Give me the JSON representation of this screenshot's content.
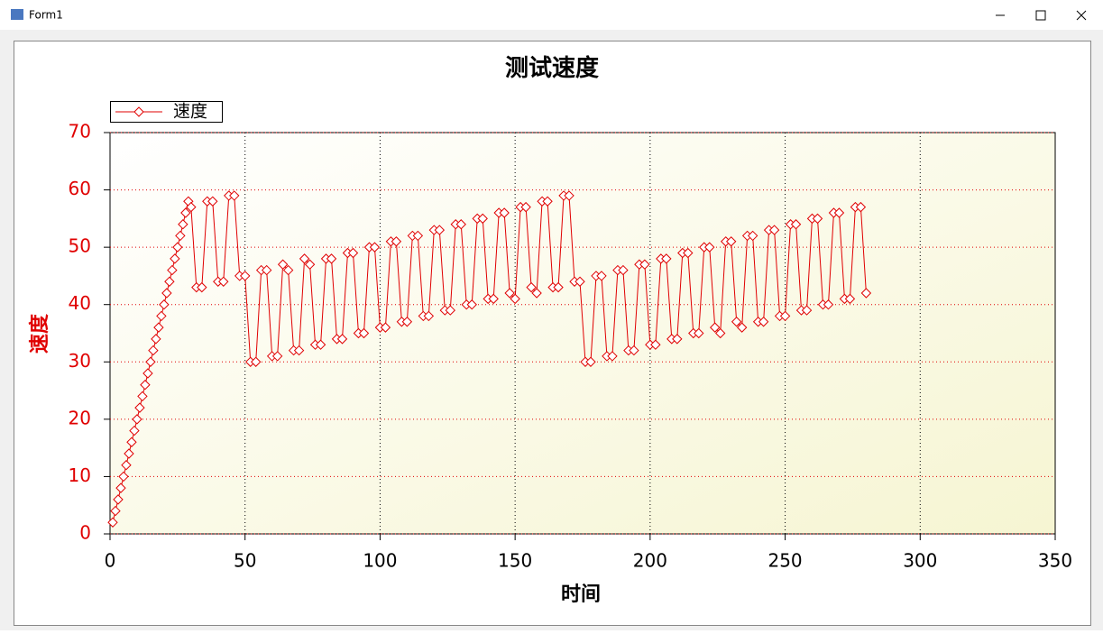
{
  "window_title": "Form1",
  "chart_data": {
    "type": "line",
    "title": "测试速度",
    "xlabel": "时间",
    "ylabel": "速度",
    "x": [
      1,
      2,
      3,
      4,
      5,
      6,
      7,
      8,
      9,
      10,
      11,
      12,
      13,
      14,
      15,
      16,
      17,
      18,
      19,
      20,
      21,
      22,
      23,
      24,
      25,
      26,
      27,
      28,
      29,
      30,
      32,
      34,
      36,
      38,
      40,
      42,
      44,
      46,
      48,
      50,
      52,
      54,
      56,
      58,
      60,
      62,
      64,
      66,
      68,
      70,
      72,
      74,
      76,
      78,
      80,
      82,
      84,
      86,
      88,
      90,
      92,
      94,
      96,
      98,
      100,
      102,
      104,
      106,
      108,
      110,
      112,
      114,
      116,
      118,
      120,
      122,
      124,
      126,
      128,
      130,
      132,
      134,
      136,
      138,
      140,
      142,
      144,
      146,
      148,
      150,
      152,
      154,
      156,
      158,
      160,
      162,
      164,
      166,
      168,
      170,
      172,
      174,
      176,
      178,
      180,
      182,
      184,
      186,
      188,
      190,
      192,
      194,
      196,
      198,
      200,
      202,
      204,
      206,
      208,
      210,
      212,
      214,
      216,
      218,
      220,
      222,
      224,
      226,
      228,
      230,
      232,
      234,
      236,
      238,
      240,
      242,
      244,
      246,
      248,
      250,
      252,
      254,
      256,
      258,
      260,
      262,
      264,
      266,
      268,
      270,
      272,
      274,
      276,
      278,
      280
    ],
    "series": [
      {
        "name": "速度",
        "color": "#e00000",
        "values": [
          2,
          4,
          6,
          8,
          10,
          12,
          14,
          16,
          18,
          20,
          22,
          24,
          26,
          28,
          30,
          32,
          34,
          36,
          38,
          40,
          42,
          44,
          46,
          48,
          50,
          52,
          54,
          56,
          58,
          57,
          43,
          43,
          58,
          58,
          44,
          44,
          59,
          59,
          45,
          45,
          30,
          30,
          46,
          46,
          31,
          31,
          47,
          46,
          32,
          32,
          48,
          47,
          33,
          33,
          48,
          48,
          34,
          34,
          49,
          49,
          35,
          35,
          50,
          50,
          36,
          36,
          51,
          51,
          37,
          37,
          52,
          52,
          38,
          38,
          53,
          53,
          39,
          39,
          54,
          54,
          40,
          40,
          55,
          55,
          41,
          41,
          56,
          56,
          42,
          41,
          57,
          57,
          43,
          42,
          58,
          58,
          43,
          43,
          59,
          59,
          44,
          44,
          30,
          30,
          45,
          45,
          31,
          31,
          46,
          46,
          32,
          32,
          47,
          47,
          33,
          33,
          48,
          48,
          34,
          34,
          49,
          49,
          35,
          35,
          50,
          50,
          36,
          35,
          51,
          51,
          37,
          36,
          52,
          52,
          37,
          37,
          53,
          53,
          38,
          38,
          54,
          54,
          39,
          39,
          55,
          55,
          40,
          40,
          56,
          56,
          41,
          41,
          57,
          57,
          42
        ]
      }
    ],
    "xlim": [
      0,
      350
    ],
    "xticks": [
      0,
      50,
      100,
      150,
      200,
      250,
      300,
      350
    ],
    "ylim": [
      0,
      70
    ],
    "yticks": [
      0,
      10,
      20,
      30,
      40,
      50,
      60,
      70
    ],
    "grid": true,
    "xgrid_color": "#000000",
    "ygrid_color": "#e00000",
    "legend": "upper left"
  }
}
